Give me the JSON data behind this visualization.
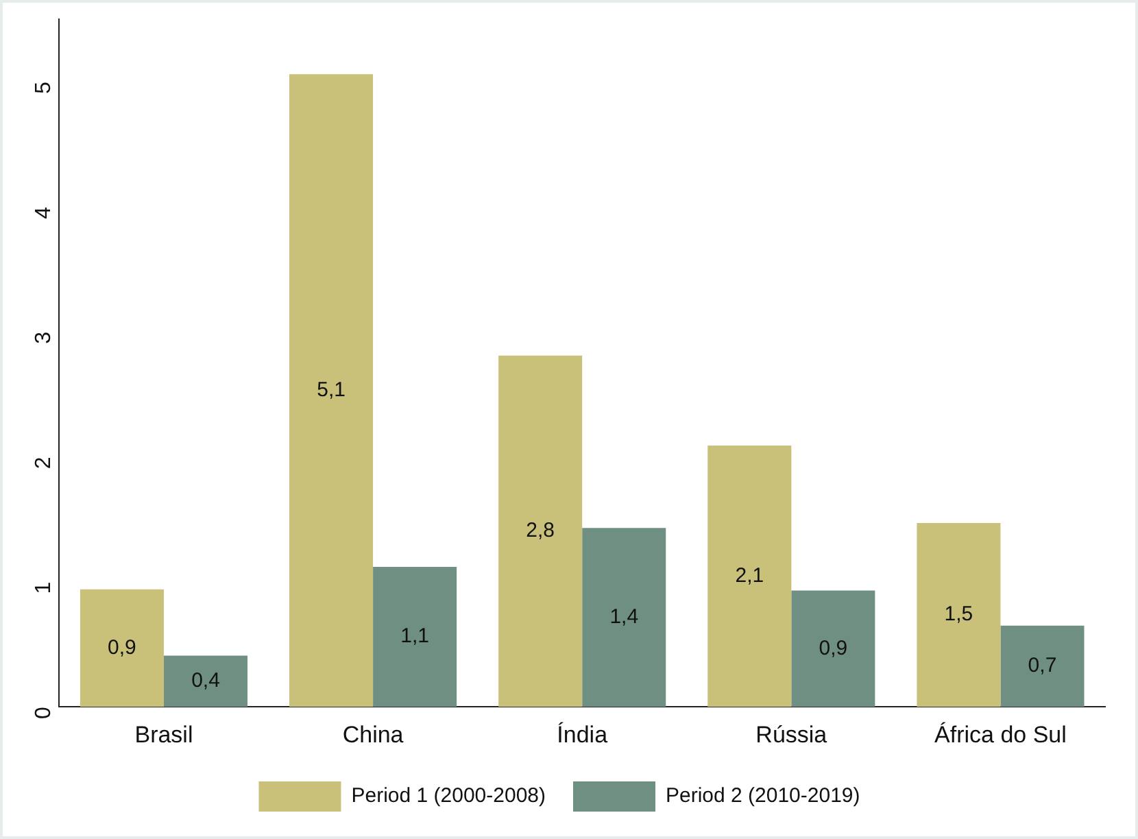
{
  "chart_data": {
    "type": "bar",
    "categories": [
      "Brasil",
      "China",
      "Índia",
      "Rússia",
      "África do Sul"
    ],
    "series": [
      {
        "name": "Period 1 (2000-2008)",
        "color": "#c9c07a",
        "values": [
          0.94,
          5.06,
          2.81,
          2.09,
          1.47
        ],
        "value_labels": [
          "0,9",
          "5,1",
          "2,8",
          "2,1",
          "1,5"
        ]
      },
      {
        "name": "Period 2 (2010-2019)",
        "color": "#6e8f82",
        "values": [
          0.41,
          1.12,
          1.43,
          0.93,
          0.65
        ],
        "value_labels": [
          "0,4",
          "1,1",
          "1,4",
          "0,9",
          "0,7"
        ]
      }
    ],
    "ylim": [
      0,
      5.5
    ],
    "yticks": [
      0,
      1,
      2,
      3,
      4,
      5
    ],
    "grid": false,
    "legend": "bottom"
  }
}
